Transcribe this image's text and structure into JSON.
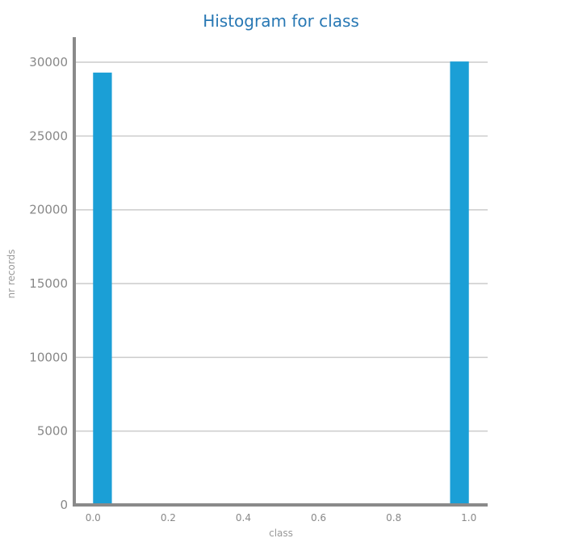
{
  "chart_data": {
    "type": "bar",
    "title": "Histogram for class",
    "xlabel": "class",
    "ylabel": "nr records",
    "bins": [
      {
        "x0": 0.0,
        "x1": 0.05,
        "value": 29300
      },
      {
        "x0": 0.95,
        "x1": 1.0,
        "value": 30050
      }
    ],
    "xlim": [
      -0.05,
      1.05
    ],
    "ylim": [
      0,
      31700
    ],
    "xticks": [
      0.0,
      0.2,
      0.4,
      0.6,
      0.8,
      1.0
    ],
    "xtick_labels": [
      "0.0",
      "0.2",
      "0.4",
      "0.6",
      "0.8",
      "1.0"
    ],
    "yticks": [
      0,
      5000,
      10000,
      15000,
      20000,
      25000,
      30000
    ],
    "ytick_labels": [
      "0",
      "5000",
      "10000",
      "15000",
      "20000",
      "25000",
      "30000"
    ],
    "grid": true,
    "bar_color": "#1b9fd6",
    "title_color": "#2878b4"
  }
}
